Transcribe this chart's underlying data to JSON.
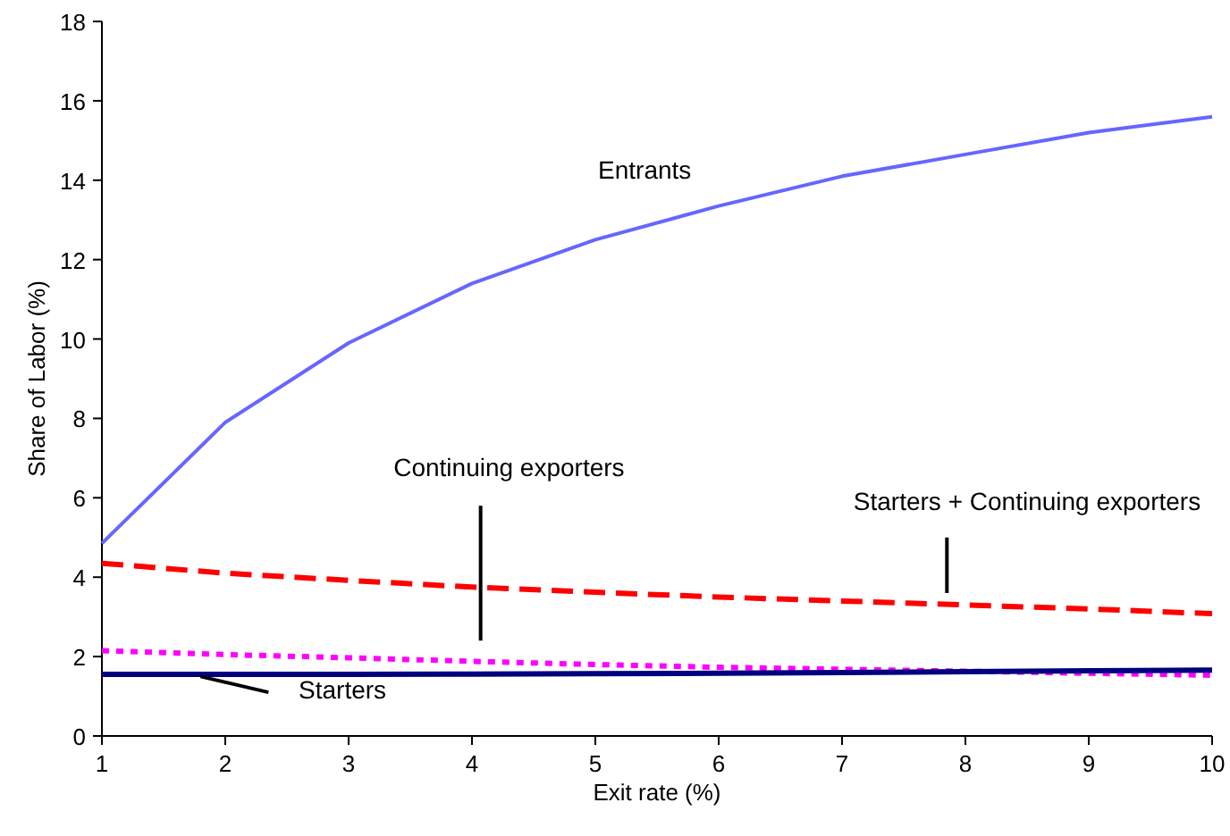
{
  "chart_data": {
    "type": "line",
    "xlabel": "Exit rate (%)",
    "ylabel": "Share of Labor (%)",
    "x": [
      1,
      2,
      3,
      4,
      5,
      6,
      7,
      8,
      9,
      10
    ],
    "xlim": [
      1,
      10
    ],
    "xticks": [
      1,
      2,
      3,
      4,
      5,
      6,
      7,
      8,
      9,
      10
    ],
    "ylim": [
      0,
      18
    ],
    "yticks": [
      0,
      2,
      4,
      6,
      8,
      10,
      12,
      14,
      16,
      18
    ],
    "grid": false,
    "marker": "none",
    "series": [
      {
        "name": "Entrants",
        "color": "#6666ff",
        "line_style": "solid",
        "values": [
          4.85,
          7.9,
          9.9,
          11.4,
          12.5,
          13.35,
          14.1,
          14.65,
          15.2,
          15.6
        ]
      },
      {
        "name": "Starters + Continuing exporters",
        "color": "#ff0000",
        "line_style": "dashed",
        "values": [
          4.35,
          4.1,
          3.92,
          3.75,
          3.62,
          3.5,
          3.4,
          3.3,
          3.2,
          3.08
        ]
      },
      {
        "name": "Continuing exporters",
        "color": "#ff00ff",
        "line_style": "dotted",
        "values": [
          2.15,
          2.05,
          1.97,
          1.88,
          1.8,
          1.73,
          1.68,
          1.63,
          1.58,
          1.53
        ]
      },
      {
        "name": "Starters",
        "color": "#000080",
        "line_style": "solid",
        "values": [
          1.55,
          1.55,
          1.55,
          1.56,
          1.57,
          1.58,
          1.6,
          1.62,
          1.64,
          1.66
        ]
      }
    ]
  }
}
